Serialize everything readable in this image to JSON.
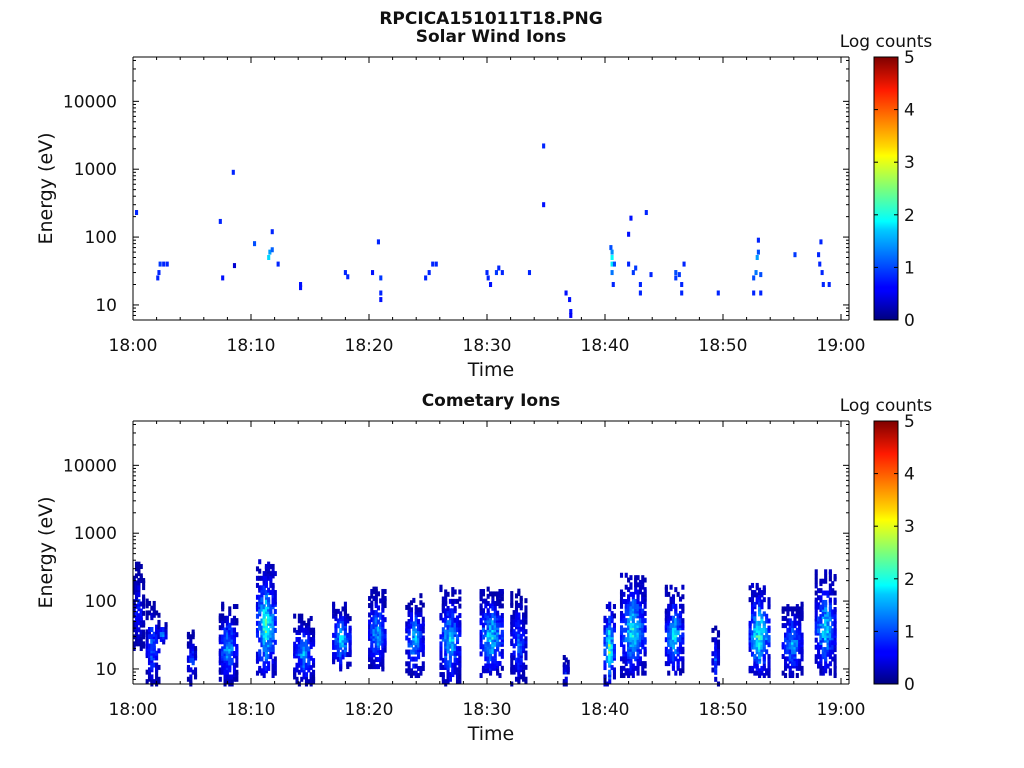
{
  "figure": {
    "file_title": "RPCICA151011T18.PNG"
  },
  "chart_data": [
    {
      "type": "heatmap",
      "title": "Solar Wind Ions",
      "xlabel": "Time",
      "ylabel": "Energy (eV)",
      "x_ticks": [
        "18:00",
        "18:10",
        "18:20",
        "18:30",
        "18:40",
        "18:50",
        "19:00"
      ],
      "x_range_minutes": [
        0,
        60
      ],
      "y_ticks": [
        "10",
        "100",
        "1000",
        "10000"
      ],
      "y_scale": "log",
      "y_range": [
        6,
        45000
      ],
      "colorbar": {
        "label": "Log counts",
        "range": [
          0,
          5
        ],
        "ticks": [
          "0",
          "1",
          "2",
          "3",
          "4",
          "5"
        ]
      },
      "cells": [
        [
          0.3,
          230,
          0.8
        ],
        [
          2.3,
          40,
          0.9
        ],
        [
          2.2,
          30,
          0.8
        ],
        [
          2.1,
          25,
          0.8
        ],
        [
          2.6,
          40,
          0.8
        ],
        [
          2.9,
          40,
          0.8
        ],
        [
          7.4,
          170,
          0.8
        ],
        [
          7.6,
          25,
          0.7
        ],
        [
          8.5,
          900,
          0.8
        ],
        [
          8.6,
          38,
          0.4
        ],
        [
          10.3,
          80,
          1.0
        ],
        [
          11.5,
          50,
          1.7
        ],
        [
          11.6,
          60,
          1.4
        ],
        [
          11.8,
          65,
          1.1
        ],
        [
          11.8,
          120,
          0.8
        ],
        [
          12.3,
          40,
          0.8
        ],
        [
          14.2,
          20,
          0.7
        ],
        [
          14.2,
          18,
          0.7
        ],
        [
          18.0,
          30,
          0.8
        ],
        [
          18.2,
          26,
          0.8
        ],
        [
          20.3,
          30,
          0.7
        ],
        [
          20.8,
          85,
          0.8
        ],
        [
          21.0,
          25,
          0.9
        ],
        [
          21.0,
          15,
          0.8
        ],
        [
          21.0,
          12,
          0.7
        ],
        [
          24.8,
          25,
          0.8
        ],
        [
          25.1,
          30,
          0.8
        ],
        [
          25.4,
          40,
          0.8
        ],
        [
          25.7,
          40,
          0.8
        ],
        [
          30.0,
          30,
          0.8
        ],
        [
          30.1,
          25,
          0.8
        ],
        [
          30.3,
          20,
          0.7
        ],
        [
          30.8,
          30,
          0.9
        ],
        [
          31.0,
          35,
          0.8
        ],
        [
          31.3,
          30,
          0.8
        ],
        [
          33.6,
          30,
          0.8
        ],
        [
          34.8,
          2200,
          0.8
        ],
        [
          34.8,
          300,
          0.7
        ],
        [
          36.7,
          15,
          0.7
        ],
        [
          37.0,
          12,
          0.7
        ],
        [
          37.1,
          8,
          0.7
        ],
        [
          37.1,
          7,
          0.6
        ],
        [
          40.5,
          70,
          1.0
        ],
        [
          40.6,
          60,
          1.3
        ],
        [
          40.6,
          50,
          1.9
        ],
        [
          40.6,
          40,
          1.8
        ],
        [
          40.6,
          30,
          1.2
        ],
        [
          40.7,
          20,
          0.8
        ],
        [
          40.8,
          40,
          1.0
        ],
        [
          42.0,
          40,
          0.8
        ],
        [
          42.2,
          190,
          0.7
        ],
        [
          42.0,
          110,
          0.7
        ],
        [
          42.4,
          30,
          0.9
        ],
        [
          42.6,
          35,
          0.9
        ],
        [
          43.0,
          20,
          0.8
        ],
        [
          43.0,
          15,
          0.8
        ],
        [
          43.5,
          230,
          0.8
        ],
        [
          43.9,
          28,
          0.8
        ],
        [
          46.0,
          25,
          0.9
        ],
        [
          46.3,
          28,
          0.9
        ],
        [
          46.5,
          20,
          0.8
        ],
        [
          46.5,
          15,
          0.8
        ],
        [
          46.0,
          30,
          1.0
        ],
        [
          46.7,
          40,
          0.8
        ],
        [
          49.6,
          15,
          0.8
        ],
        [
          52.6,
          25,
          1.0
        ],
        [
          52.8,
          30,
          1.2
        ],
        [
          52.9,
          50,
          1.4
        ],
        [
          53.0,
          60,
          1.0
        ],
        [
          53.0,
          90,
          0.8
        ],
        [
          53.2,
          28,
          1.0
        ],
        [
          53.2,
          15,
          0.8
        ],
        [
          52.6,
          15,
          0.8
        ],
        [
          56.1,
          55,
          0.9
        ],
        [
          58.1,
          55,
          0.8
        ],
        [
          58.2,
          40,
          0.8
        ],
        [
          58.3,
          85,
          0.8
        ],
        [
          58.4,
          30,
          0.8
        ],
        [
          58.5,
          20,
          0.8
        ],
        [
          59.0,
          20,
          0.8
        ]
      ]
    },
    {
      "type": "heatmap",
      "title": "Cometary Ions",
      "xlabel": "Time",
      "ylabel": "Energy (eV)",
      "x_ticks": [
        "18:00",
        "18:10",
        "18:20",
        "18:30",
        "18:40",
        "18:50",
        "19:00"
      ],
      "x_range_minutes": [
        0,
        60
      ],
      "y_ticks": [
        "10",
        "100",
        "1000",
        "10000"
      ],
      "y_scale": "log",
      "y_range": [
        6,
        45000
      ],
      "colorbar": {
        "label": "Log counts",
        "range": [
          0,
          5
        ],
        "ticks": [
          "0",
          "1",
          "2",
          "3",
          "4",
          "5"
        ]
      },
      "clusters": [
        {
          "t": 0.6,
          "dt": 1.0,
          "emin": 20,
          "emax": 350,
          "peak": 1.0
        },
        {
          "t": 1.8,
          "dt": 1.2,
          "emin": 6,
          "emax": 100,
          "peak": 1.5
        },
        {
          "t": 2.6,
          "dt": 0.8,
          "emin": 25,
          "emax": 45,
          "peak": 1.9
        },
        {
          "t": 5.1,
          "dt": 0.8,
          "emin": 6,
          "emax": 35,
          "peak": 1.4
        },
        {
          "t": 8.2,
          "dt": 1.6,
          "emin": 6,
          "emax": 90,
          "peak": 1.8
        },
        {
          "t": 11.4,
          "dt": 1.7,
          "emin": 8,
          "emax": 380,
          "peak": 2.6
        },
        {
          "t": 14.6,
          "dt": 1.8,
          "emin": 6,
          "emax": 60,
          "peak": 1.7
        },
        {
          "t": 17.8,
          "dt": 1.6,
          "emin": 10,
          "emax": 90,
          "peak": 2.0
        },
        {
          "t": 20.8,
          "dt": 1.5,
          "emin": 10,
          "emax": 150,
          "peak": 1.9
        },
        {
          "t": 24.0,
          "dt": 1.6,
          "emin": 8,
          "emax": 120,
          "peak": 1.9
        },
        {
          "t": 27.0,
          "dt": 1.8,
          "emin": 6,
          "emax": 160,
          "peak": 2.0
        },
        {
          "t": 30.5,
          "dt": 2.0,
          "emin": 8,
          "emax": 150,
          "peak": 2.2
        },
        {
          "t": 32.8,
          "dt": 1.4,
          "emin": 6,
          "emax": 140,
          "peak": 1.4
        },
        {
          "t": 36.8,
          "dt": 0.5,
          "emin": 6,
          "emax": 16,
          "peak": 1.0
        },
        {
          "t": 40.5,
          "dt": 1.0,
          "emin": 6,
          "emax": 90,
          "peak": 3.0
        },
        {
          "t": 42.5,
          "dt": 2.2,
          "emin": 8,
          "emax": 240,
          "peak": 2.3
        },
        {
          "t": 46.0,
          "dt": 1.6,
          "emin": 8,
          "emax": 160,
          "peak": 2.1
        },
        {
          "t": 49.5,
          "dt": 0.7,
          "emin": 6,
          "emax": 40,
          "peak": 1.3
        },
        {
          "t": 53.2,
          "dt": 1.8,
          "emin": 8,
          "emax": 170,
          "peak": 2.6
        },
        {
          "t": 56.0,
          "dt": 1.8,
          "emin": 8,
          "emax": 90,
          "peak": 1.8
        },
        {
          "t": 58.8,
          "dt": 1.8,
          "emin": 8,
          "emax": 270,
          "peak": 2.1
        }
      ]
    }
  ]
}
